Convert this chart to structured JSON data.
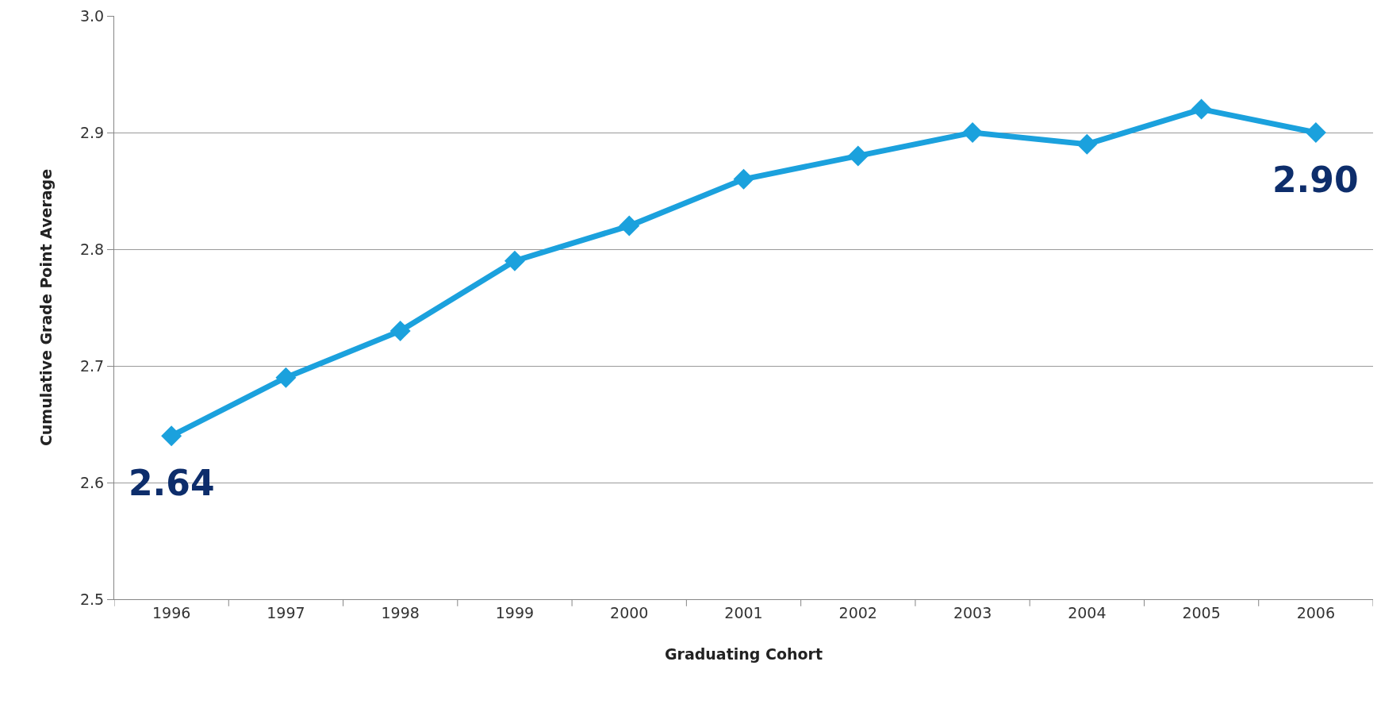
{
  "chart_data": {
    "type": "line",
    "xlabel": "Graduating Cohort",
    "ylabel": "Cumulative Grade Point Average",
    "categories": [
      "1996",
      "1997",
      "1998",
      "1999",
      "2000",
      "2001",
      "2002",
      "2003",
      "2004",
      "2005",
      "2006"
    ],
    "series": [
      {
        "color": "#1ba1dd",
        "values": [
          2.64,
          2.69,
          2.73,
          2.79,
          2.82,
          2.86,
          2.88,
          2.9,
          2.89,
          2.92,
          2.9
        ],
        "value_labels": [
          "2.64",
          null,
          null,
          null,
          null,
          null,
          null,
          null,
          null,
          null,
          "2.90"
        ]
      }
    ],
    "ylim": [
      2.5,
      3.0
    ],
    "yticks": [
      "2.5",
      "2.6",
      "2.7",
      "2.8",
      "2.9",
      "3.0"
    ],
    "grid": "y",
    "marker": "diamond",
    "line_style": "solid"
  }
}
